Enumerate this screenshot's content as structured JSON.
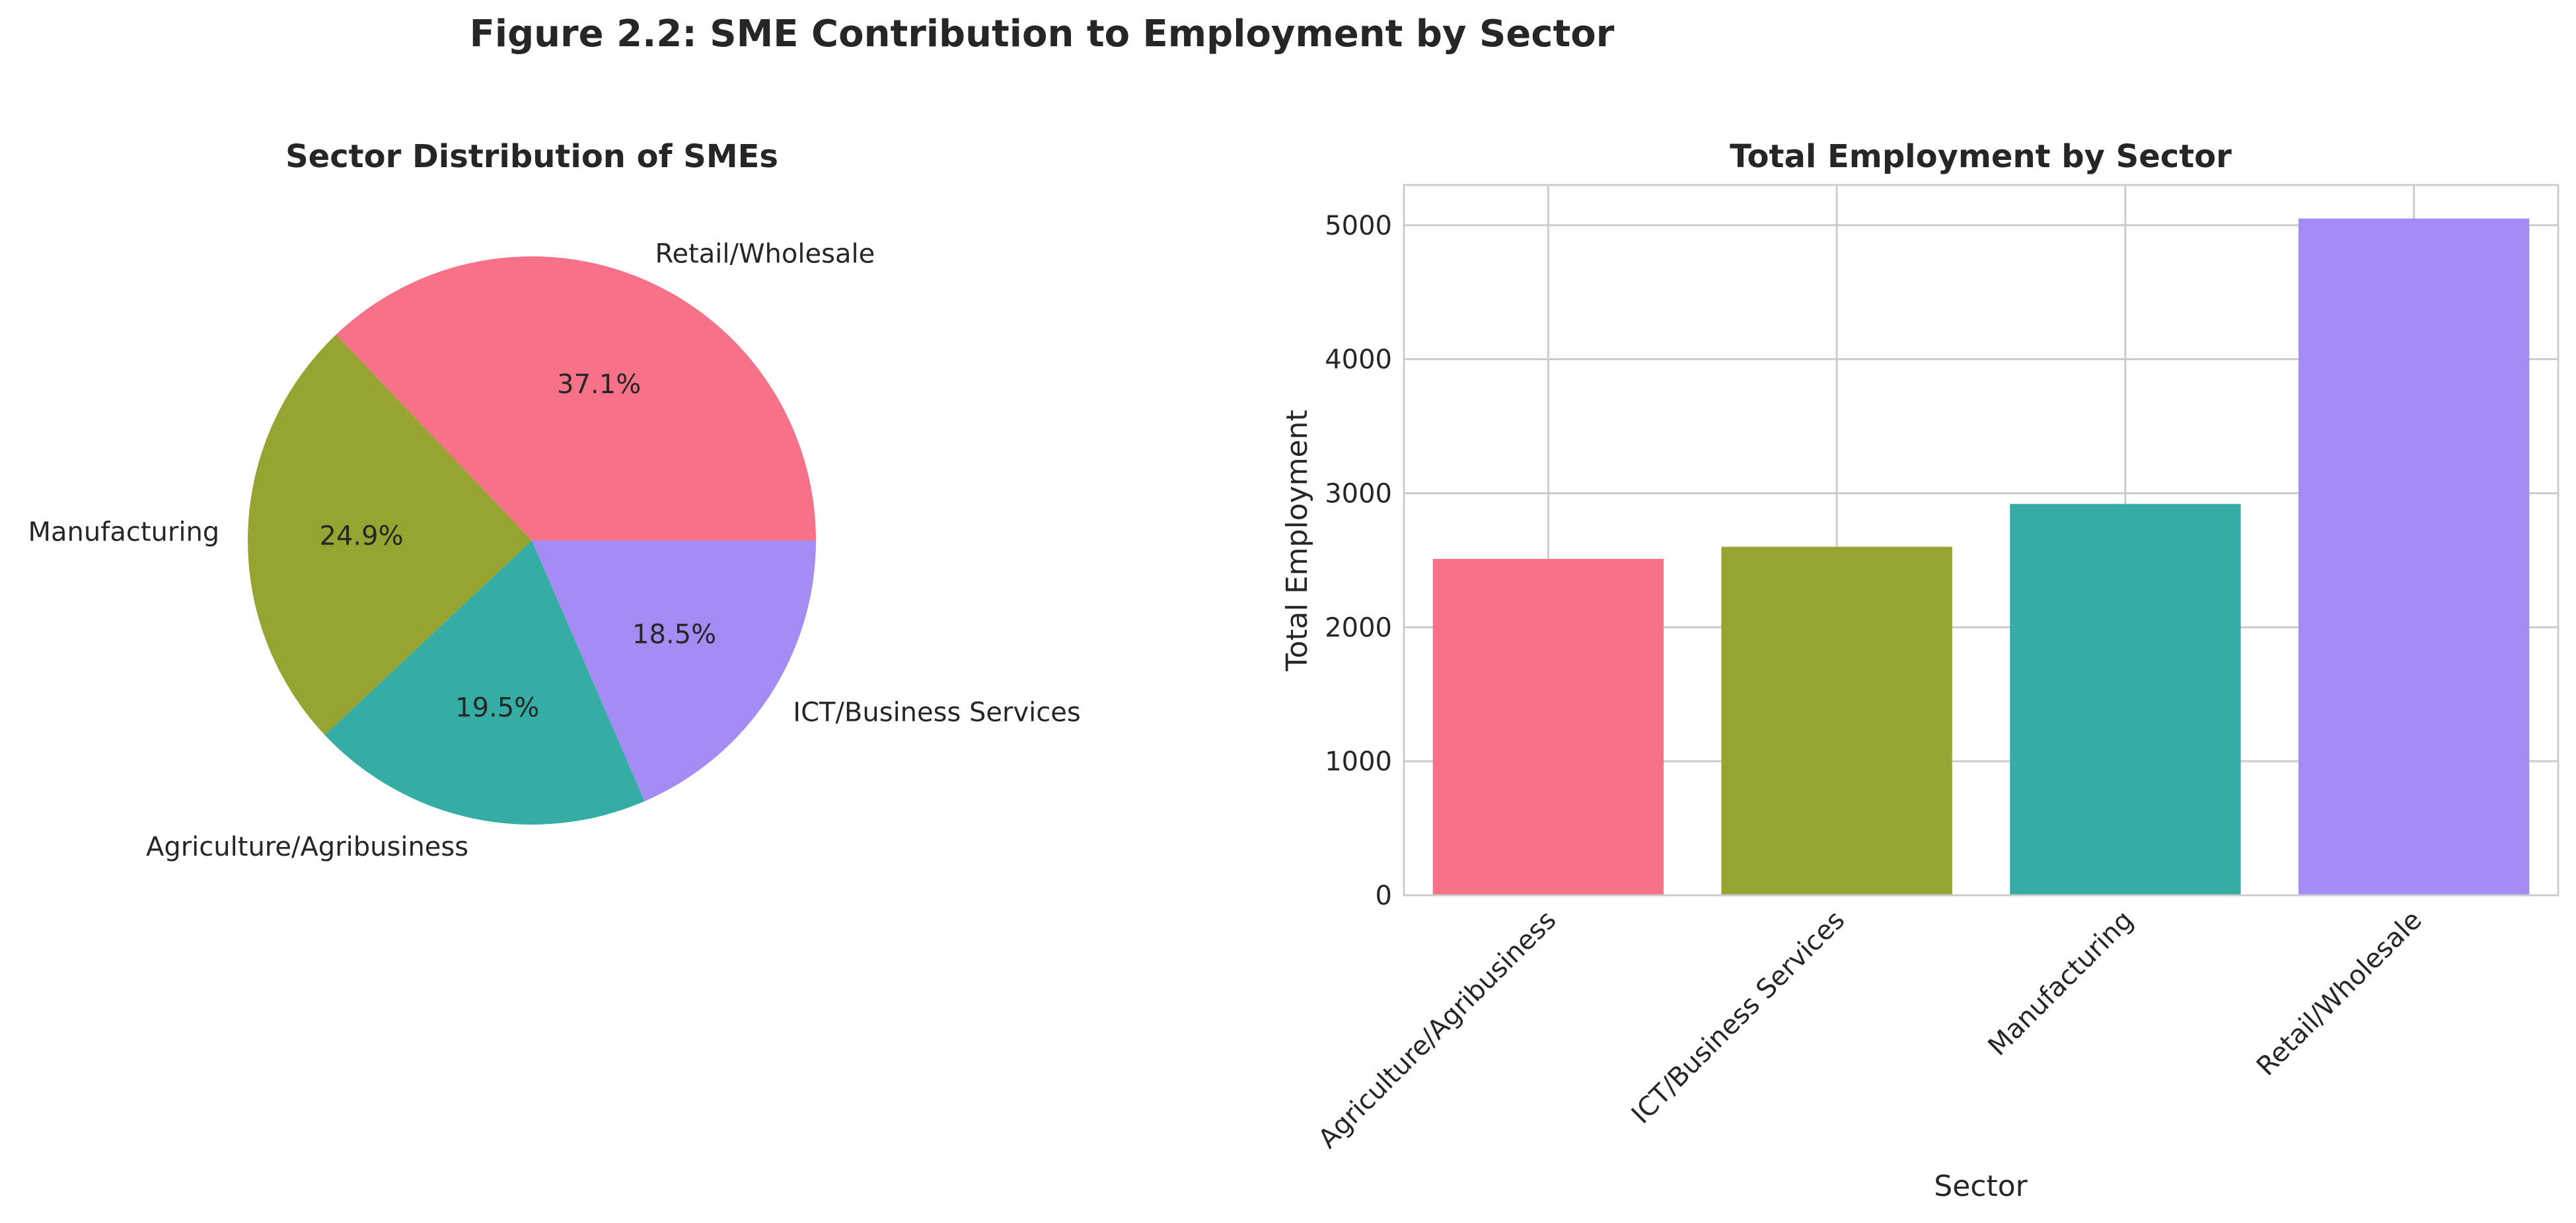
{
  "figure_title": "Figure 2.2: SME Contribution to Employment by Sector",
  "chart_data": [
    {
      "type": "pie",
      "title": "Sector Distribution of SMEs",
      "labels": [
        "Retail/Wholesale",
        "Manufacturing",
        "Agriculture/Agribusiness",
        "ICT/Business Services"
      ],
      "values": [
        37.1,
        24.9,
        19.5,
        18.5
      ],
      "value_labels": [
        "37.1%",
        "24.9%",
        "19.5%",
        "18.5%"
      ],
      "colors": [
        "#f77189",
        "#97a431",
        "#36ada4",
        "#a48cf4"
      ],
      "start_angle": 0,
      "direction": "counterclockwise"
    },
    {
      "type": "bar",
      "title": "Total Employment by Sector",
      "xlabel": "Sector",
      "ylabel": "Total Employment",
      "categories": [
        "Agriculture/Agribusiness",
        "ICT/Business Services",
        "Manufacturing",
        "Retail/Wholesale"
      ],
      "values": [
        2510,
        2600,
        2920,
        5050
      ],
      "colors": [
        "#f77189",
        "#97a431",
        "#36ada4",
        "#a48cf4"
      ],
      "ylim": [
        0,
        5300
      ],
      "yticks": [
        0,
        1000,
        2000,
        3000,
        4000,
        5000
      ],
      "grid": true
    }
  ]
}
